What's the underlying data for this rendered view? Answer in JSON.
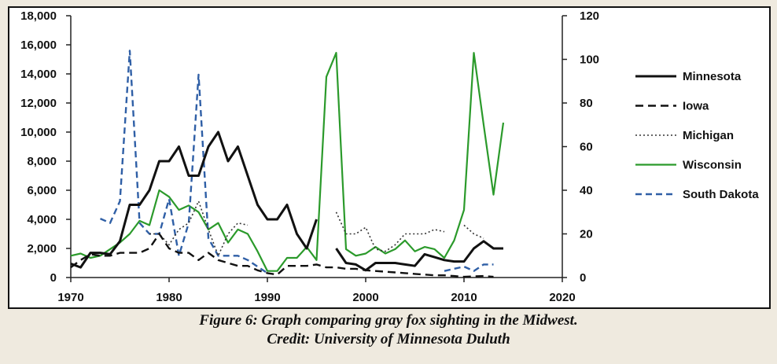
{
  "chart_data": {
    "type": "line",
    "xlim": [
      1970,
      2020
    ],
    "x_ticks": [
      "1970",
      "1980",
      "1990",
      "2000",
      "2010",
      "2020"
    ],
    "ylim_left": [
      0,
      18000
    ],
    "y_ticks_left": [
      "0",
      "2,000",
      "4,000",
      "6,000",
      "8,000",
      "10,000",
      "12,000",
      "14,000",
      "16,000",
      "18,000"
    ],
    "ylim_right": [
      0,
      120
    ],
    "y_ticks_right": [
      "0",
      "20",
      "40",
      "60",
      "80",
      "100",
      "120"
    ],
    "legend_position": "right",
    "series": [
      {
        "name": "Minnesota",
        "axis": "left",
        "color": "#111111",
        "dash": "solid",
        "segments": [
          [
            [
              1970,
              950
            ],
            [
              1971,
              700
            ],
            [
              1972,
              1700
            ],
            [
              1973,
              1700
            ],
            [
              1974,
              1600
            ],
            [
              1975,
              2500
            ],
            [
              1976,
              5000
            ],
            [
              1977,
              5000
            ],
            [
              1978,
              6000
            ],
            [
              1979,
              8000
            ],
            [
              1980,
              8000
            ],
            [
              1981,
              9000
            ],
            [
              1982,
              7000
            ],
            [
              1983,
              7000
            ],
            [
              1984,
              9000
            ],
            [
              1985,
              10000
            ],
            [
              1986,
              8000
            ],
            [
              1987,
              9000
            ],
            [
              1988,
              7000
            ],
            [
              1989,
              5000
            ],
            [
              1990,
              4000
            ],
            [
              1991,
              4000
            ],
            [
              1992,
              5000
            ],
            [
              1993,
              3000
            ],
            [
              1994,
              2000
            ],
            [
              1995,
              4000
            ]
          ],
          [
            [
              1997,
              2000
            ],
            [
              1998,
              1000
            ],
            [
              1999,
              900
            ],
            [
              2000,
              500
            ],
            [
              2001,
              1000
            ],
            [
              2002,
              1000
            ],
            [
              2003,
              1000
            ],
            [
              2004,
              900
            ],
            [
              2005,
              800
            ],
            [
              2006,
              1600
            ],
            [
              2007,
              1400
            ],
            [
              2008,
              1200
            ],
            [
              2009,
              1100
            ],
            [
              2010,
              1100
            ],
            [
              2011,
              2000
            ],
            [
              2012,
              2500
            ],
            [
              2013,
              2000
            ],
            [
              2014,
              2000
            ]
          ]
        ]
      },
      {
        "name": "Iowa",
        "axis": "left",
        "color": "#111111",
        "dash": "10,6",
        "segments": [
          [
            [
              1970,
              700
            ],
            [
              1971,
              1200
            ],
            [
              1972,
              1600
            ],
            [
              1973,
              1500
            ],
            [
              1974,
              1500
            ],
            [
              1975,
              1700
            ],
            [
              1976,
              1700
            ],
            [
              1977,
              1700
            ],
            [
              1978,
              2000
            ],
            [
              1979,
              3000
            ],
            [
              1980,
              2000
            ],
            [
              1981,
              1700
            ],
            [
              1982,
              1700
            ],
            [
              1983,
              1200
            ],
            [
              1984,
              1700
            ],
            [
              1985,
              1200
            ],
            [
              1986,
              1000
            ],
            [
              1987,
              800
            ],
            [
              1988,
              800
            ],
            [
              1989,
              500
            ],
            [
              1990,
              300
            ],
            [
              1991,
              200
            ],
            [
              1992,
              800
            ],
            [
              1993,
              800
            ],
            [
              1994,
              800
            ],
            [
              1995,
              900
            ],
            [
              1996,
              700
            ],
            [
              1997,
              700
            ],
            [
              1998,
              600
            ],
            [
              1999,
              600
            ],
            [
              2000,
              500
            ],
            [
              2001,
              450
            ],
            [
              2002,
              400
            ],
            [
              2003,
              350
            ],
            [
              2004,
              300
            ],
            [
              2005,
              250
            ],
            [
              2006,
              200
            ],
            [
              2007,
              150
            ],
            [
              2008,
              150
            ],
            [
              2009,
              100
            ],
            [
              2010,
              50
            ],
            [
              2011,
              80
            ],
            [
              2012,
              100
            ],
            [
              2013,
              50
            ]
          ]
        ]
      },
      {
        "name": "Michigan",
        "axis": "right",
        "color": "#333333",
        "dash": "2,3",
        "segments": [
          [
            [
              1978,
              20
            ],
            [
              1979,
              20
            ],
            [
              1980,
              15
            ],
            [
              1981,
              22
            ],
            [
              1982,
              25
            ],
            [
              1983,
              35
            ],
            [
              1984,
              22
            ],
            [
              1985,
              10
            ],
            [
              1986,
              20
            ],
            [
              1987,
              25
            ],
            [
              1988,
              24
            ]
          ],
          [
            [
              1997,
              30
            ],
            [
              1998,
              20
            ],
            [
              1999,
              20
            ],
            [
              2000,
              23
            ],
            [
              2001,
              13
            ],
            [
              2002,
              12
            ],
            [
              2003,
              15
            ],
            [
              2004,
              20
            ],
            [
              2005,
              20
            ],
            [
              2006,
              20
            ],
            [
              2007,
              22
            ],
            [
              2008,
              21
            ]
          ],
          [
            [
              2010,
              24
            ],
            [
              2011,
              20
            ],
            [
              2012,
              18
            ]
          ]
        ]
      },
      {
        "name": "Wisconsin",
        "axis": "right",
        "color": "#2b9a2b",
        "dash": "solid",
        "segments": [
          [
            [
              1970,
              10
            ],
            [
              1971,
              11
            ],
            [
              1972,
              9
            ],
            [
              1973,
              10
            ],
            [
              1974,
              13
            ],
            [
              1975,
              16
            ],
            [
              1976,
              20
            ],
            [
              1977,
              26
            ],
            [
              1978,
              24
            ],
            [
              1979,
              40
            ],
            [
              1980,
              37
            ],
            [
              1981,
              31
            ],
            [
              1982,
              33
            ],
            [
              1983,
              30
            ],
            [
              1984,
              22
            ],
            [
              1985,
              25
            ],
            [
              1986,
              16
            ],
            [
              1987,
              22
            ],
            [
              1988,
              20
            ],
            [
              1989,
              12
            ],
            [
              1990,
              3
            ],
            [
              1991,
              3
            ],
            [
              1992,
              9
            ],
            [
              1993,
              9
            ],
            [
              1994,
              14
            ],
            [
              1995,
              8
            ],
            [
              1996,
              92
            ],
            [
              1997,
              103
            ],
            [
              1998,
              13
            ],
            [
              1999,
              10
            ],
            [
              2000,
              11
            ],
            [
              2001,
              14
            ],
            [
              2002,
              11
            ],
            [
              2003,
              13
            ],
            [
              2004,
              17
            ],
            [
              2005,
              12
            ],
            [
              2006,
              14
            ],
            [
              2007,
              13
            ],
            [
              2008,
              9
            ],
            [
              2009,
              17
            ],
            [
              2010,
              31
            ],
            [
              2011,
              103
            ],
            [
              2012,
              70
            ],
            [
              2013,
              38
            ],
            [
              2014,
              71
            ]
          ]
        ]
      },
      {
        "name": "South Dakota",
        "axis": "right",
        "color": "#2f5fa6",
        "dash": "8,5",
        "segments": [
          [
            [
              1973,
              27
            ],
            [
              1974,
              25
            ],
            [
              1975,
              35
            ],
            [
              1976,
              104
            ],
            [
              1977,
              25
            ],
            [
              1978,
              20
            ],
            [
              1979,
              20
            ],
            [
              1980,
              36
            ],
            [
              1981,
              10
            ],
            [
              1982,
              25
            ],
            [
              1983,
              93
            ],
            [
              1984,
              18
            ],
            [
              1985,
              10
            ],
            [
              1986,
              10
            ],
            [
              1987,
              10
            ],
            [
              1988,
              8
            ],
            [
              1989,
              5
            ],
            [
              1990,
              2
            ]
          ],
          [
            [
              2008,
              3
            ],
            [
              2009,
              4
            ],
            [
              2010,
              5
            ],
            [
              2011,
              3
            ],
            [
              2012,
              6
            ],
            [
              2013,
              6
            ]
          ]
        ]
      }
    ]
  },
  "caption": {
    "line1": "Figure 6: Graph comparing gray fox sighting in the Midwest.",
    "line2": "Credit: University of Minnesota Duluth"
  }
}
